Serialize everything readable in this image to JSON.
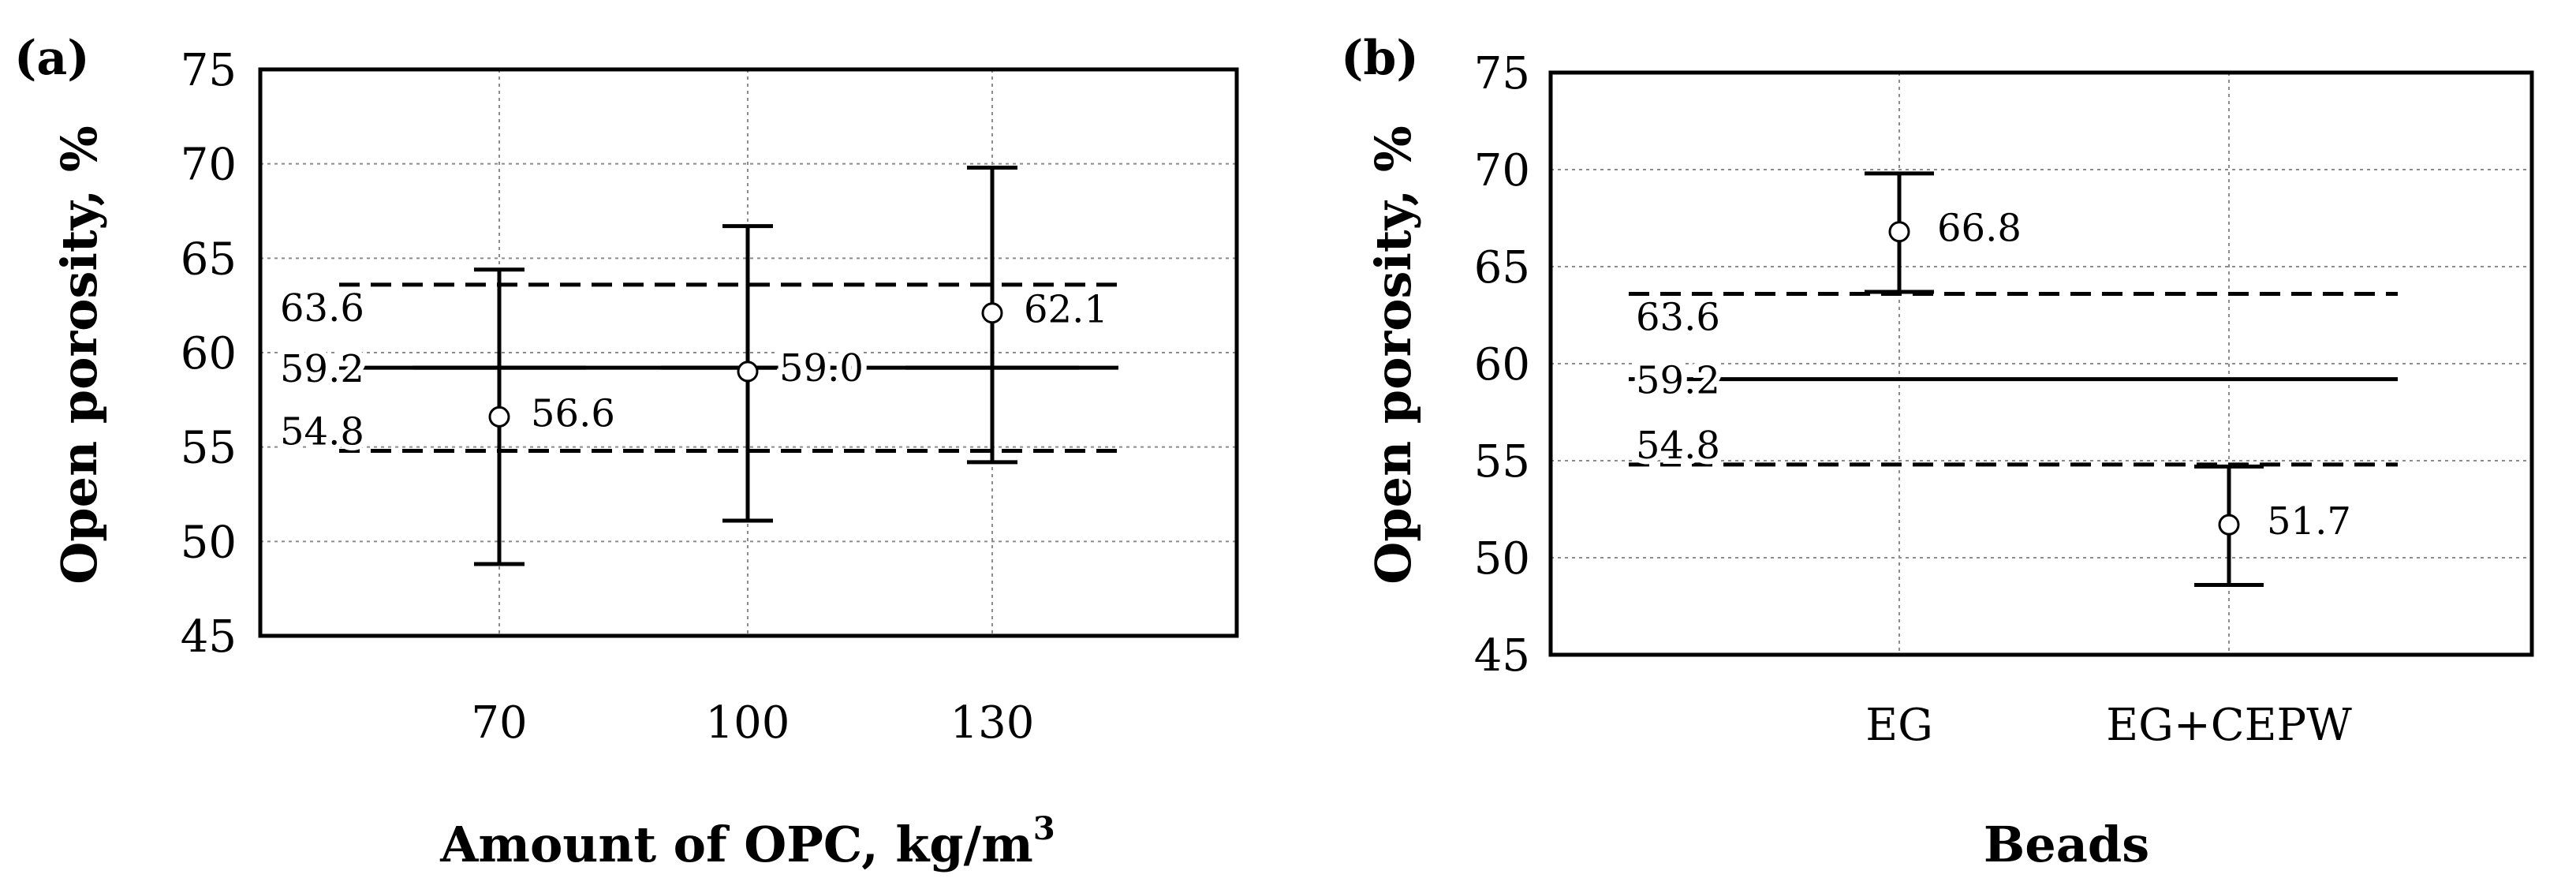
{
  "chart_data": [
    {
      "panel_label": "(a)",
      "type": "scatter",
      "xlabel": "Amount of OPC, kg/m",
      "xlabel_superscript": "3",
      "ylabel": "Open porosity, %",
      "ylim": [
        45,
        75
      ],
      "yticks": [
        45,
        50,
        55,
        60,
        65,
        70,
        75
      ],
      "categories": [
        "70",
        "100",
        "130"
      ],
      "x": [
        70,
        100,
        130
      ],
      "grid": true,
      "points": [
        {
          "x": 70,
          "y": 56.6,
          "label": "56.6",
          "err_low": 48.8,
          "err_high": 64.4
        },
        {
          "x": 100,
          "y": 59.0,
          "label": "59.0",
          "err_low": 51.1,
          "err_high": 66.7
        },
        {
          "x": 130,
          "y": 62.1,
          "label": "62.1",
          "err_low": 54.2,
          "err_high": 69.8
        }
      ],
      "reference_lines": [
        {
          "y": 63.6,
          "label": "63.6",
          "style": "dashed"
        },
        {
          "y": 59.2,
          "label": "59.2",
          "style": "solid"
        },
        {
          "y": 54.8,
          "label": "54.8",
          "style": "dashed"
        }
      ]
    },
    {
      "panel_label": "(b)",
      "type": "scatter",
      "xlabel": "Beads",
      "ylabel": "Open porosity, %",
      "ylim": [
        45,
        75
      ],
      "yticks": [
        45,
        50,
        55,
        60,
        65,
        70,
        75
      ],
      "categories": [
        "EG",
        "EG+CEPW"
      ],
      "grid": true,
      "points": [
        {
          "x": "EG",
          "y": 66.8,
          "label": "66.8",
          "err_low": 63.7,
          "err_high": 69.8
        },
        {
          "x": "EG+CEPW",
          "y": 51.7,
          "label": "51.7",
          "err_low": 48.6,
          "err_high": 54.7
        }
      ],
      "reference_lines": [
        {
          "y": 63.6,
          "label": "63.6",
          "style": "dashed"
        },
        {
          "y": 59.2,
          "label": "59.2",
          "style": "solid"
        },
        {
          "y": 54.8,
          "label": "54.8",
          "style": "dashed"
        }
      ]
    }
  ]
}
